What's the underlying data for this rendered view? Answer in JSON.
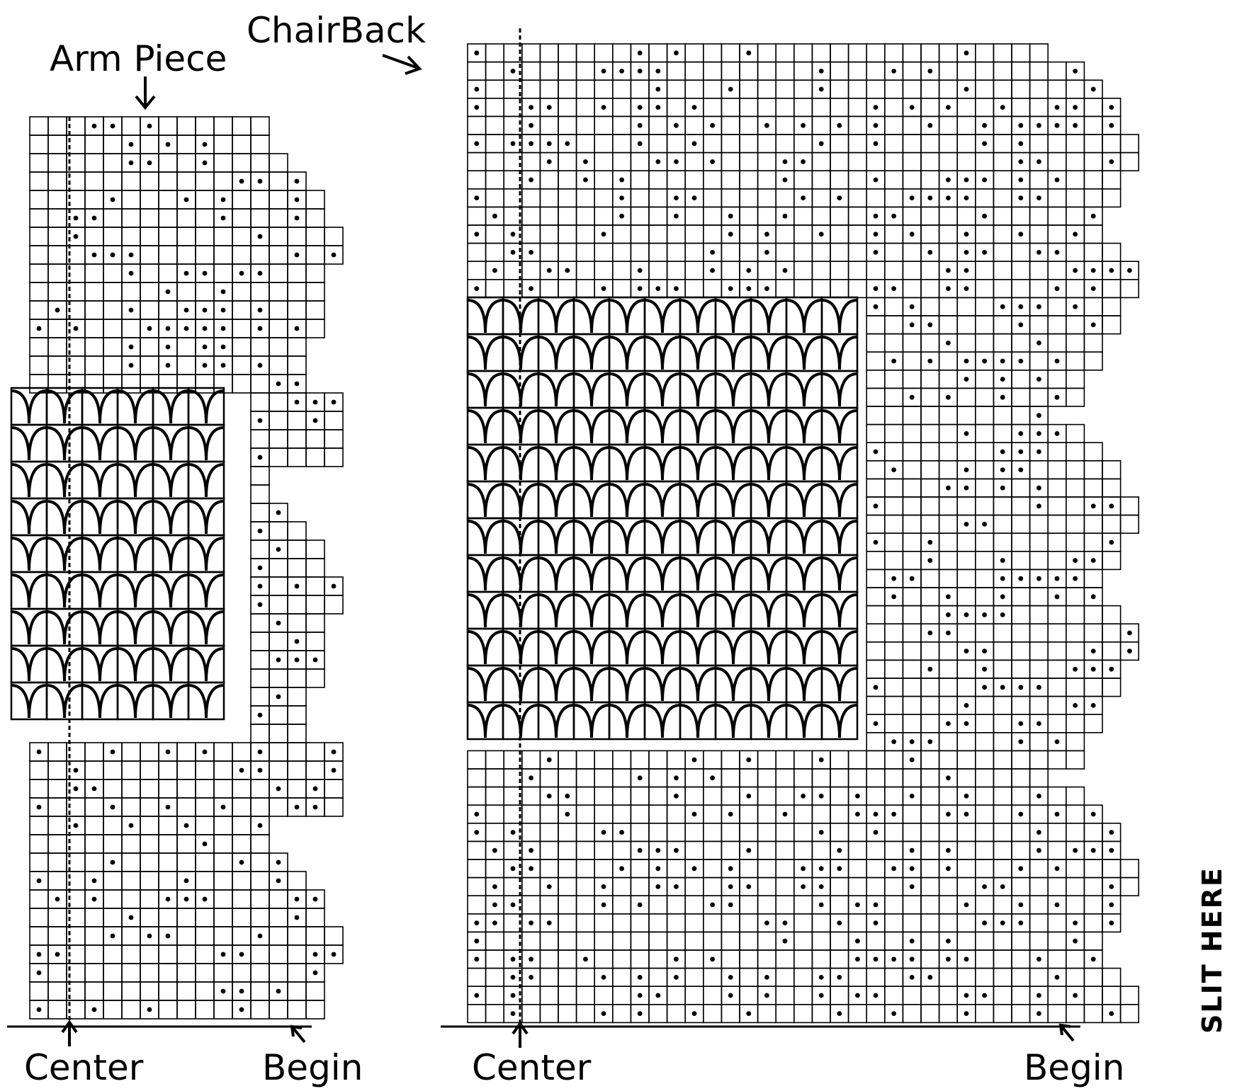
{
  "labels": {
    "arm_piece": "Arm Piece",
    "chair_back": "ChairBack",
    "center_left": "Center",
    "begin_left": "Begin",
    "center_right": "Center",
    "begin_right": "Begin",
    "slit_here": "SLIT HERE"
  },
  "pattern": {
    "type": "filet crochet chart",
    "symbols": {
      "open_mesh": "empty square",
      "filled_block": "dot in square",
      "lacet_fan": "curved fan stitch"
    }
  }
}
